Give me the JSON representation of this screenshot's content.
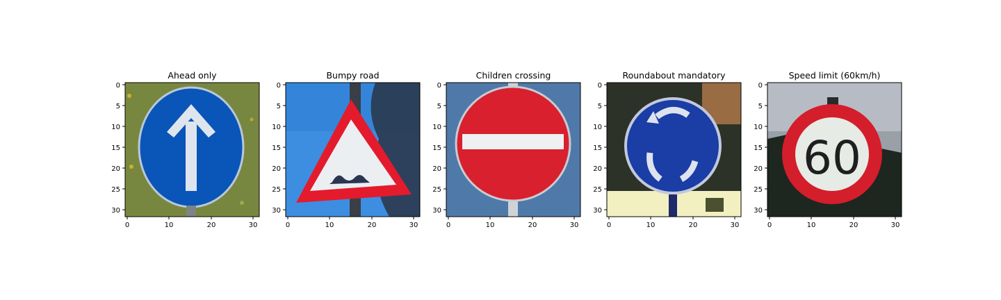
{
  "panels": [
    {
      "title": "Ahead only",
      "x_ticks": [
        "0",
        "10",
        "20",
        "30"
      ],
      "y_ticks": [
        "0",
        "5",
        "10",
        "15",
        "20",
        "25",
        "30"
      ],
      "image": {
        "background": "#6f7d3a",
        "sign": "#0a55b8",
        "symbol": "arrow-up"
      }
    },
    {
      "title": "Bumpy road",
      "x_ticks": [
        "0",
        "10",
        "20",
        "30"
      ],
      "y_ticks": [
        "0",
        "5",
        "10",
        "15",
        "20",
        "25",
        "30"
      ],
      "image": {
        "background": "#3d8ee0",
        "sign": "#e31b2c",
        "symbol": "bump"
      }
    },
    {
      "title": "Children crossing",
      "x_ticks": [
        "0",
        "10",
        "20",
        "30"
      ],
      "y_ticks": [
        "0",
        "5",
        "10",
        "15",
        "20",
        "25",
        "30"
      ],
      "image": {
        "background": "#4f79a8",
        "sign": "#d9202e",
        "symbol": "no-entry-bar"
      }
    },
    {
      "title": "Roundabout mandatory",
      "x_ticks": [
        "0",
        "10",
        "20",
        "30"
      ],
      "y_ticks": [
        "0",
        "5",
        "10",
        "15",
        "20",
        "25",
        "30"
      ],
      "image": {
        "background": "#2d3228",
        "sign": "#1a3da6",
        "symbol": "roundabout"
      }
    },
    {
      "title": "Speed limit (60km/h)",
      "x_ticks": [
        "0",
        "10",
        "20",
        "30"
      ],
      "y_ticks": [
        "0",
        "5",
        "10",
        "15",
        "20",
        "25",
        "30"
      ],
      "image": {
        "background": "#9aa0a8",
        "sign": "#d41e2b",
        "symbol": "speed-60",
        "sign_text": "60"
      }
    }
  ]
}
